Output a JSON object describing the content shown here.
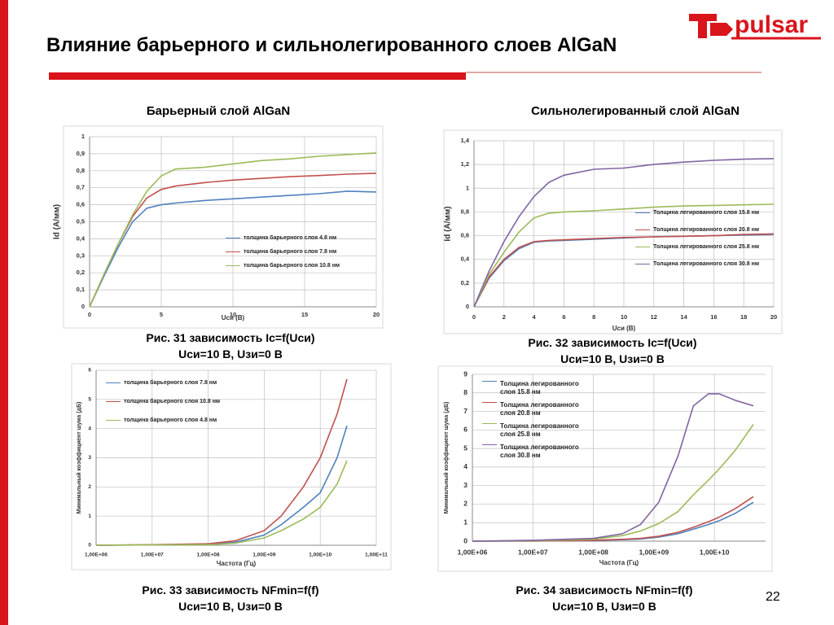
{
  "title": "Влияние барьерного и сильнолегированного слоев AlGaN",
  "logo": "pulsar",
  "page_number": "22",
  "panels": [
    "Барьерный слой AlGaN",
    "Сильнолегированный слой AlGaN"
  ],
  "captions": [
    [
      "Рис. 31 зависимость Ic=f(Uси)",
      "Uси=10 В, Uзи=0 В"
    ],
    [
      "Рис. 32 зависимость Ic=f(Uси)",
      "Uси=10 В, Uзи=0 В"
    ],
    [
      "Рис. 33 зависимость NFmin=f(f)",
      "Uси=10 В, Uзи=0 В"
    ],
    [
      "Рис. 34 зависимость NFmin=f(f)",
      "Uси=10 В, Uзи=0 В"
    ]
  ],
  "chart_data": [
    {
      "type": "line",
      "x_label": "Uси (В)",
      "y_label": "Id (А/мм)",
      "x": [
        0,
        1,
        2,
        3,
        4,
        5,
        6,
        8,
        10,
        12,
        14,
        16,
        18,
        20
      ],
      "xlim": [
        0,
        20
      ],
      "xticks": [
        0,
        5,
        10,
        15,
        20
      ],
      "ylim": [
        0,
        1
      ],
      "yticks": [
        0,
        {
          "value": 0.1,
          "label": "0,1"
        },
        {
          "value": 0.2,
          "label": "0,2"
        },
        {
          "value": 0.3,
          "label": "0,3"
        },
        {
          "value": 0.4,
          "label": "0,4"
        },
        {
          "value": 0.5,
          "label": "0,5"
        },
        {
          "value": 0.6,
          "label": "0,6"
        },
        {
          "value": 0.7,
          "label": "0,7"
        },
        {
          "value": 0.8,
          "label": "0,8"
        },
        {
          "value": 0.9,
          "label": "0,9"
        },
        1
      ],
      "grid": true,
      "legend": "lower right",
      "series": [
        {
          "name": "толщина барьерного слоя 4.8 нм",
          "color": "#4f81bd",
          "values": [
            0,
            0.18,
            0.35,
            0.5,
            0.58,
            0.6,
            0.61,
            0.625,
            0.635,
            0.645,
            0.655,
            0.665,
            0.68,
            0.675
          ]
        },
        {
          "name": "толщина барьерного слоя 7.8 нм",
          "color": "#c0504d",
          "values": [
            0,
            0.19,
            0.37,
            0.53,
            0.64,
            0.69,
            0.71,
            0.73,
            0.745,
            0.755,
            0.765,
            0.772,
            0.78,
            0.785
          ]
        },
        {
          "name": "толщина барьерного слоя 10.8 нм",
          "color": "#9bbb59",
          "values": [
            0,
            0.19,
            0.37,
            0.54,
            0.68,
            0.77,
            0.81,
            0.82,
            0.84,
            0.86,
            0.87,
            0.885,
            0.895,
            0.905
          ]
        }
      ]
    },
    {
      "type": "line",
      "x_label": "Uси (В)",
      "y_label": "Id (А/мм)",
      "x": [
        0,
        1,
        2,
        3,
        4,
        5,
        6,
        8,
        10,
        12,
        14,
        16,
        18,
        20
      ],
      "xlim": [
        0,
        20
      ],
      "xticks": [
        0,
        2,
        4,
        6,
        8,
        10,
        12,
        14,
        16,
        18,
        20
      ],
      "ylim": [
        0,
        1.4
      ],
      "yticks": [
        0,
        {
          "value": 0.2,
          "label": "0,2"
        },
        {
          "value": 0.4,
          "label": "0,4"
        },
        {
          "value": 0.6,
          "label": "0,6"
        },
        {
          "value": 0.8,
          "label": "0,8"
        },
        1,
        {
          "value": 1.2,
          "label": "1,2"
        },
        {
          "value": 1.4,
          "label": "1,4"
        }
      ],
      "grid": true,
      "legend": "lower right",
      "series": [
        {
          "name": "Толщина легированного слоя 15.8 нм",
          "color": "#4f81bd",
          "values": [
            0,
            0.24,
            0.39,
            0.49,
            0.545,
            0.555,
            0.56,
            0.57,
            0.58,
            0.59,
            0.595,
            0.6,
            0.605,
            0.61
          ]
        },
        {
          "name": "Толщина легированного слоя 20.8 нм",
          "color": "#c0504d",
          "values": [
            0,
            0.25,
            0.4,
            0.5,
            0.55,
            0.56,
            0.565,
            0.575,
            0.585,
            0.59,
            0.595,
            0.6,
            0.61,
            0.615
          ]
        },
        {
          "name": "Толщина легированного слоя 25.8 нм",
          "color": "#9bbb59",
          "values": [
            0,
            0.27,
            0.46,
            0.63,
            0.75,
            0.79,
            0.8,
            0.81,
            0.825,
            0.84,
            0.85,
            0.855,
            0.86,
            0.865
          ]
        },
        {
          "name": "Толщина легированного слоя 30.8 нм",
          "color": "#8064a2",
          "values": [
            0,
            0.3,
            0.55,
            0.76,
            0.93,
            1.05,
            1.11,
            1.16,
            1.17,
            1.2,
            1.22,
            1.235,
            1.245,
            1.25
          ]
        }
      ]
    },
    {
      "type": "line",
      "x_label": "Частота (Гц)",
      "y_label": "Минимальный коэффициент шума (дБ)",
      "log_x": true,
      "x": [
        1000000,
        10000000,
        100000000,
        300000000,
        1000000000,
        2000000000,
        5000000000,
        10000000000,
        20000000000,
        30000000000
      ],
      "xlim": [
        1000000,
        100000000000
      ],
      "xticks": [
        {
          "value": 1000000,
          "label": "1,00E+06"
        },
        {
          "value": 10000000,
          "label": "1,00E+07"
        },
        {
          "value": 100000000,
          "label": "1,00E+08"
        },
        {
          "value": 1000000000,
          "label": "1,00E+09"
        },
        {
          "value": 10000000000,
          "label": "1,00E+10"
        },
        {
          "value": 100000000000,
          "label": "1,00E+11"
        }
      ],
      "ylim": [
        0,
        6
      ],
      "yticks": [
        0,
        1,
        2,
        3,
        4,
        5,
        6
      ],
      "grid": true,
      "legend": "upper left",
      "series": [
        {
          "name": "толщина барьерного слоя 7.8 нм",
          "color": "#4f81bd",
          "values": [
            0,
            0.01,
            0.03,
            0.1,
            0.35,
            0.7,
            1.3,
            1.8,
            3.0,
            4.1
          ]
        },
        {
          "name": "толщина барьерного слоя 10.8 нм",
          "color": "#c0504d",
          "values": [
            0,
            0.02,
            0.05,
            0.15,
            0.5,
            1.0,
            2.0,
            3.0,
            4.5,
            5.7
          ]
        },
        {
          "name": "толщина барьерного слоя 4.8 нм",
          "color": "#9bbb59",
          "values": [
            0,
            0.01,
            0.02,
            0.07,
            0.25,
            0.5,
            0.9,
            1.3,
            2.1,
            2.9
          ]
        }
      ]
    },
    {
      "type": "line",
      "x_label": "Частота (Гц)",
      "y_label": "Минимальный коэффициент шума (дБ)",
      "log_x": true,
      "x": [
        1000000,
        10000000,
        100000000,
        300000000,
        600000000,
        1200000000,
        2500000000,
        4500000000,
        8000000000,
        12000000000,
        22000000000,
        44000000000
      ],
      "xlim": [
        1000000,
        70000000000
      ],
      "xticks": [
        {
          "value": 1000000,
          "label": "1,00E+06"
        },
        {
          "value": 10000000,
          "label": "1,00E+07"
        },
        {
          "value": 100000000,
          "label": "1,00E+08"
        },
        {
          "value": 1000000000,
          "label": "1,00E+09"
        },
        {
          "value": 10000000000,
          "label": "1,00E+10"
        }
      ],
      "ylim": [
        0,
        9
      ],
      "yticks": [
        0,
        1,
        2,
        3,
        4,
        5,
        6,
        7,
        8,
        9
      ],
      "grid": true,
      "legend": "upper left",
      "series": [
        {
          "name": "Толщина легированного слоя 15.8 нм",
          "color": "#4f81bd",
          "values": [
            0,
            0.01,
            0.04,
            0.08,
            0.12,
            0.22,
            0.4,
            0.65,
            0.9,
            1.1,
            1.5,
            2.1
          ]
        },
        {
          "name": "Толщина легированного слоя 20.8 нм",
          "color": "#c0504d",
          "values": [
            0,
            0.01,
            0.05,
            0.1,
            0.15,
            0.27,
            0.48,
            0.75,
            1.05,
            1.3,
            1.75,
            2.4
          ]
        },
        {
          "name": "Толщина легированного слоя 25.8 нм",
          "color": "#9bbb59",
          "values": [
            0,
            0.02,
            0.1,
            0.3,
            0.55,
            0.95,
            1.6,
            2.5,
            3.3,
            3.9,
            4.9,
            6.3
          ]
        },
        {
          "name": "Толщина легированного слоя 30.8 нм",
          "color": "#8064a2",
          "values": [
            0,
            0.05,
            0.15,
            0.4,
            0.9,
            2.1,
            4.6,
            7.3,
            7.95,
            7.95,
            7.6,
            7.3
          ]
        }
      ]
    }
  ]
}
